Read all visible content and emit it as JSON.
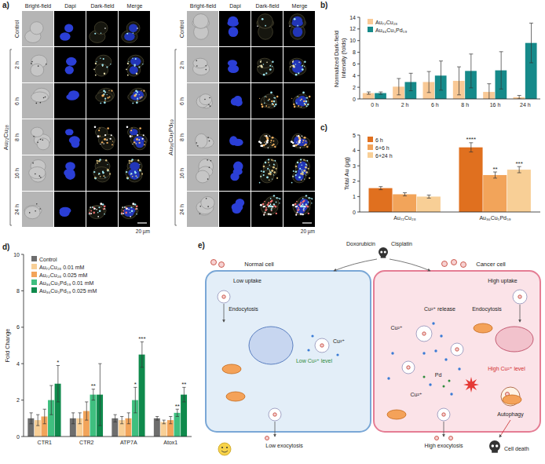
{
  "panel_a": {
    "label": "a)",
    "columns": [
      "Bright-field",
      "Dapi",
      "Dark-field",
      "Merge"
    ],
    "groups": [
      {
        "name": "Au₇₂Cu₂₈",
        "rows": [
          "Control",
          "2 h",
          "6 h",
          "8 h",
          "16 h",
          "24 h"
        ],
        "scale_bar": "20 µm"
      },
      {
        "name": "Au₃₆Cu₅Pd₅₉",
        "rows": [
          "Control",
          "2 h",
          "6 h",
          "8 h",
          "16 h",
          "24 h"
        ],
        "scale_bar": "20 µm"
      }
    ]
  },
  "chart_data": [
    {
      "panel_label": "b)",
      "type": "bar",
      "categories": [
        "0 h",
        "2 h",
        "6 h",
        "8 h",
        "16 h",
        "24 h"
      ],
      "y_label": "Normalized Dark-field Intensity (folds)",
      "ylim": [
        0,
        14
      ],
      "yticks": [
        0,
        2,
        4,
        6,
        8,
        10,
        12,
        14
      ],
      "legend": "top-left",
      "series": [
        {
          "name": "Au₇₂Cu₂₈",
          "color": "#f9c996",
          "values": [
            1,
            2.1,
            2.9,
            3.1,
            1.2,
            0.3
          ],
          "errors": [
            0.2,
            1.4,
            1.8,
            2.4,
            1.4,
            0.3
          ]
        },
        {
          "name": "Au₃₆Cu₅Pd₅₉",
          "color": "#168a8a",
          "values": [
            1,
            2.9,
            4.0,
            4.8,
            4.9,
            9.6
          ],
          "errors": [
            0.2,
            1.5,
            2.5,
            2.9,
            3.2,
            3.4
          ]
        }
      ]
    },
    {
      "panel_label": "c)",
      "type": "bar",
      "categories": [
        "Au₇₂Cu₂₈",
        "Au₃₆Cu₅Pd₅₉"
      ],
      "y_label": "Total Au (µg)",
      "ylim": [
        0,
        5
      ],
      "yticks": [
        0,
        1,
        2,
        3,
        4,
        5
      ],
      "legend": "top-left",
      "series": [
        {
          "name": "6 h",
          "color": "#e0701f",
          "values": [
            1.55,
            4.2
          ],
          "errors": [
            0.1,
            0.3
          ],
          "significance": [
            null,
            "****"
          ]
        },
        {
          "name": "6+6 h",
          "color": "#f2a45a",
          "values": [
            1.15,
            2.4
          ],
          "errors": [
            0.1,
            0.2
          ],
          "significance": [
            null,
            "**"
          ]
        },
        {
          "name": "6+24 h",
          "color": "#f8cf96",
          "values": [
            1.0,
            2.75
          ],
          "errors": [
            0.1,
            0.2
          ],
          "significance": [
            null,
            "***"
          ]
        }
      ]
    },
    {
      "panel_label": "d)",
      "type": "bar",
      "categories": [
        "CTR1",
        "CTR2",
        "ATP7A",
        "Atox1"
      ],
      "y_label": "Fold Change",
      "ylim": [
        0,
        10
      ],
      "yticks": [
        0,
        2,
        4,
        6,
        8,
        10
      ],
      "legend": "top-left",
      "series": [
        {
          "name": "Control",
          "color": "#6d6d6d",
          "values": [
            1,
            1,
            1,
            1
          ],
          "errors": [
            0.3,
            0.3,
            0.2,
            0.1
          ]
        },
        {
          "name": "Au₇₂Cu₂₈ 0.01 mM",
          "color": "#f8cf96",
          "values": [
            0.9,
            1.0,
            0.9,
            0.8
          ],
          "errors": [
            0.3,
            0.3,
            0.2,
            0.1
          ]
        },
        {
          "name": "Au₇₂Cu₂₈ 0.025 mM",
          "color": "#f2a45a",
          "values": [
            1.1,
            1.4,
            1.0,
            0.9
          ],
          "errors": [
            0.4,
            0.5,
            0.3,
            0.2
          ]
        },
        {
          "name": "Au₃₆Cu₅Pd₅₉ 0.01 mM",
          "color": "#3fbf7f",
          "values": [
            2.0,
            2.3,
            2.0,
            1.3
          ],
          "errors": [
            0.8,
            0.3,
            0.7,
            0.2
          ],
          "significance": [
            null,
            "**",
            "*",
            "**"
          ]
        },
        {
          "name": "Au₃₆Cu₅Pd₅₉ 0.025 mM",
          "color": "#0f8a4c",
          "values": [
            2.9,
            2.3,
            4.5,
            2.3
          ],
          "errors": [
            1.0,
            1.7,
            0.7,
            0.4
          ],
          "significance": [
            "*",
            null,
            "***",
            "**"
          ]
        }
      ]
    }
  ],
  "panel_e": {
    "label": "e)",
    "drugs": [
      "Doxorubicin",
      "Cisplatin"
    ],
    "normal_cell": {
      "title": "Normal cell",
      "uptake": "Low uptake",
      "endocytosis": "Endocytosis",
      "ion": "Cu²⁺",
      "level": "Low Cu²⁺ level",
      "exocytosis": "Low exocytosis"
    },
    "cancer_cell": {
      "title": "Cancer cell",
      "uptake": "High uptake",
      "endocytosis": "Endocytosis",
      "release": "Cu²⁺ release",
      "ions": [
        "Cu²⁺",
        "Cu²⁺"
      ],
      "metal": "Pd",
      "level": "High Cu²⁺ level",
      "autophagy": "Autophagy",
      "exocytosis": "High exocytosis",
      "outcome": "Cell death"
    }
  }
}
